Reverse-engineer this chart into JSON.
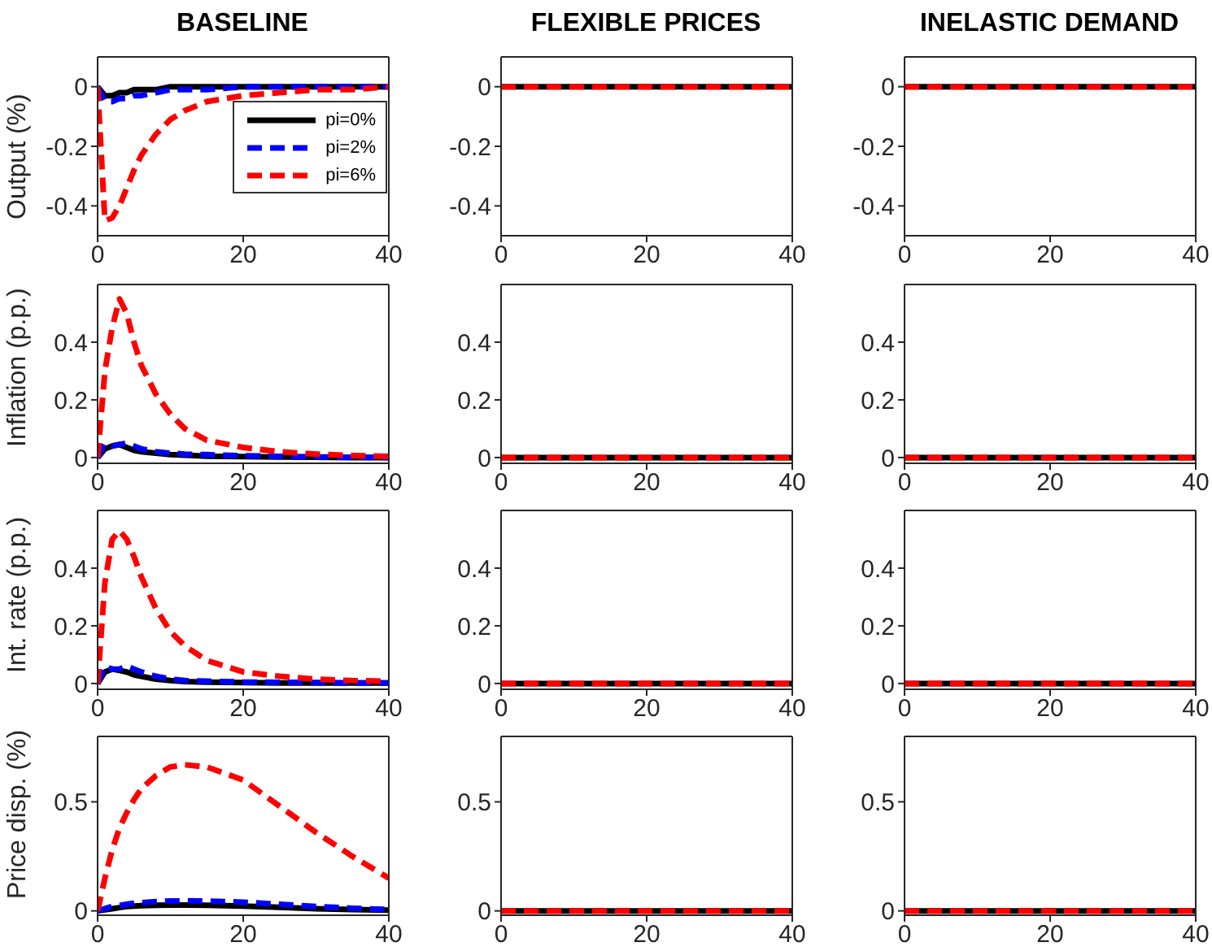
{
  "chart_data": [
    {
      "type": "line",
      "title": "BASELINE",
      "ylabel": "Output (%)",
      "legend": "right",
      "x": [
        0,
        1,
        2,
        3,
        4,
        5,
        6,
        8,
        10,
        12,
        15,
        20,
        25,
        30,
        35,
        40
      ],
      "xlim": [
        0,
        40
      ],
      "xticks": [
        0,
        20,
        40
      ],
      "ylim": [
        -0.5,
        0.1
      ],
      "yticks": [
        -0.4,
        -0.2,
        0
      ],
      "series": [
        {
          "name": "pi=0%",
          "color": "#000000",
          "line_style": "solid",
          "values": [
            0,
            -0.03,
            -0.03,
            -0.02,
            -0.02,
            -0.01,
            -0.01,
            -0.01,
            0,
            0,
            0,
            0,
            0,
            0,
            0,
            0
          ]
        },
        {
          "name": "pi=2%",
          "color": "#0000ff",
          "line_style": "dashed",
          "values": [
            0,
            -0.05,
            -0.05,
            -0.04,
            -0.04,
            -0.03,
            -0.03,
            -0.02,
            -0.01,
            -0.01,
            -0.01,
            0,
            0,
            0,
            0,
            0
          ]
        },
        {
          "name": "pi=6%",
          "color": "#ff0000",
          "line_style": "dashed",
          "values": [
            0,
            -0.45,
            -0.44,
            -0.4,
            -0.34,
            -0.28,
            -0.23,
            -0.16,
            -0.11,
            -0.08,
            -0.05,
            -0.03,
            -0.02,
            -0.01,
            -0.01,
            0
          ]
        }
      ]
    },
    {
      "type": "line",
      "title": "FLEXIBLE PRICES",
      "x": [
        0,
        10,
        20,
        30,
        40
      ],
      "xlim": [
        0,
        40
      ],
      "xticks": [
        0,
        20,
        40
      ],
      "ylim": [
        -0.5,
        0.1
      ],
      "yticks": [
        -0.4,
        -0.2,
        0
      ],
      "series": [
        {
          "color": "#000000",
          "line_style": "solid",
          "values": [
            0,
            0,
            0,
            0,
            0
          ]
        },
        {
          "color": "#0000ff",
          "line_style": "dashed",
          "values": [
            null,
            null,
            null,
            null,
            null
          ]
        },
        {
          "color": "#ff0000",
          "line_style": "dashed",
          "values": [
            0,
            0,
            0,
            0,
            0
          ]
        }
      ]
    },
    {
      "type": "line",
      "title": "INELASTIC DEMAND",
      "x": [
        0,
        10,
        20,
        30,
        40
      ],
      "xlim": [
        0,
        40
      ],
      "xticks": [
        0,
        20,
        40
      ],
      "ylim": [
        -0.5,
        0.1
      ],
      "yticks": [
        -0.4,
        -0.2,
        0
      ],
      "series": [
        {
          "color": "#000000",
          "line_style": "solid",
          "values": [
            0,
            0,
            0,
            0,
            0
          ]
        },
        {
          "color": "#0000ff",
          "line_style": "dashed",
          "values": [
            null,
            null,
            null,
            null,
            null
          ]
        },
        {
          "color": "#ff0000",
          "line_style": "dashed",
          "values": [
            0,
            0,
            0,
            0,
            0
          ]
        }
      ]
    },
    {
      "type": "line",
      "ylabel": "Inflation (p.p.)",
      "x": [
        0,
        1,
        2,
        3,
        4,
        5,
        6,
        8,
        10,
        12,
        15,
        20,
        25,
        30,
        35,
        40
      ],
      "xlim": [
        0,
        40
      ],
      "xticks": [
        0,
        20,
        40
      ],
      "ylim": [
        -0.02,
        0.6
      ],
      "yticks": [
        0,
        0.2,
        0.4
      ],
      "series": [
        {
          "color": "#000000",
          "line_style": "solid",
          "values": [
            0,
            0.03,
            0.04,
            0.045,
            0.035,
            0.025,
            0.02,
            0.015,
            0.01,
            0.008,
            0.005,
            0.003,
            0.002,
            0.001,
            0,
            0
          ]
        },
        {
          "color": "#0000ff",
          "line_style": "dashed",
          "values": [
            0,
            0.05,
            0.04,
            0.045,
            0.05,
            0.04,
            0.03,
            0.02,
            0.015,
            0.012,
            0.01,
            0.006,
            0.004,
            0.002,
            0.001,
            0
          ]
        },
        {
          "color": "#ff0000",
          "line_style": "dashed",
          "values": [
            0,
            0.3,
            0.45,
            0.55,
            0.5,
            0.4,
            0.32,
            0.22,
            0.15,
            0.1,
            0.06,
            0.035,
            0.02,
            0.012,
            0.007,
            0.004
          ]
        }
      ]
    },
    {
      "type": "line",
      "x": [
        0,
        10,
        20,
        30,
        40
      ],
      "xlim": [
        0,
        40
      ],
      "xticks": [
        0,
        20,
        40
      ],
      "ylim": [
        -0.02,
        0.6
      ],
      "yticks": [
        0,
        0.2,
        0.4
      ],
      "series": [
        {
          "color": "#000000",
          "line_style": "solid",
          "values": [
            0,
            0,
            0,
            0,
            0
          ]
        },
        {
          "color": "#0000ff",
          "line_style": "dashed",
          "values": [
            null,
            null,
            null,
            null,
            null
          ]
        },
        {
          "color": "#ff0000",
          "line_style": "dashed",
          "values": [
            0,
            0,
            0,
            0,
            0
          ]
        }
      ]
    },
    {
      "type": "line",
      "x": [
        0,
        10,
        20,
        30,
        40
      ],
      "xlim": [
        0,
        40
      ],
      "xticks": [
        0,
        20,
        40
      ],
      "ylim": [
        -0.02,
        0.6
      ],
      "yticks": [
        0,
        0.2,
        0.4
      ],
      "series": [
        {
          "color": "#000000",
          "line_style": "solid",
          "values": [
            0,
            0,
            0,
            0,
            0
          ]
        },
        {
          "color": "#0000ff",
          "line_style": "dashed",
          "values": [
            null,
            null,
            null,
            null,
            null
          ]
        },
        {
          "color": "#ff0000",
          "line_style": "dashed",
          "values": [
            0,
            0,
            0,
            0,
            0
          ]
        }
      ]
    },
    {
      "type": "line",
      "ylabel": "Int. rate (p.p.)",
      "x": [
        0,
        1,
        2,
        3,
        4,
        5,
        6,
        8,
        10,
        12,
        15,
        20,
        25,
        30,
        35,
        40
      ],
      "xlim": [
        0,
        40
      ],
      "xticks": [
        0,
        20,
        40
      ],
      "ylim": [
        -0.02,
        0.6
      ],
      "yticks": [
        0,
        0.2,
        0.4
      ],
      "series": [
        {
          "color": "#000000",
          "line_style": "solid",
          "values": [
            0,
            0.04,
            0.05,
            0.045,
            0.04,
            0.03,
            0.025,
            0.015,
            0.01,
            0.007,
            0.005,
            0.003,
            0.002,
            0.002,
            0.002,
            0.002
          ]
        },
        {
          "color": "#0000ff",
          "line_style": "dashed",
          "values": [
            0,
            0.06,
            0.05,
            0.05,
            0.06,
            0.05,
            0.04,
            0.025,
            0.015,
            0.01,
            0.008,
            0.005,
            0.004,
            0.003,
            0.002,
            0.002
          ]
        },
        {
          "color": "#ff0000",
          "line_style": "dashed",
          "values": [
            0,
            0.35,
            0.5,
            0.53,
            0.5,
            0.44,
            0.37,
            0.26,
            0.18,
            0.13,
            0.08,
            0.04,
            0.025,
            0.015,
            0.01,
            0.008
          ]
        }
      ]
    },
    {
      "type": "line",
      "x": [
        0,
        10,
        20,
        30,
        40
      ],
      "xlim": [
        0,
        40
      ],
      "xticks": [
        0,
        20,
        40
      ],
      "ylim": [
        -0.02,
        0.6
      ],
      "yticks": [
        0,
        0.2,
        0.4
      ],
      "series": [
        {
          "color": "#000000",
          "line_style": "solid",
          "values": [
            0,
            0,
            0,
            0,
            0
          ]
        },
        {
          "color": "#0000ff",
          "line_style": "dashed",
          "values": [
            null,
            null,
            null,
            null,
            null
          ]
        },
        {
          "color": "#ff0000",
          "line_style": "dashed",
          "values": [
            0,
            0,
            0,
            0,
            0
          ]
        }
      ]
    },
    {
      "type": "line",
      "x": [
        0,
        10,
        20,
        30,
        40
      ],
      "xlim": [
        0,
        40
      ],
      "xticks": [
        0,
        20,
        40
      ],
      "ylim": [
        -0.02,
        0.6
      ],
      "yticks": [
        0,
        0.2,
        0.4
      ],
      "series": [
        {
          "color": "#000000",
          "line_style": "solid",
          "values": [
            0,
            0,
            0,
            0,
            0
          ]
        },
        {
          "color": "#0000ff",
          "line_style": "dashed",
          "values": [
            null,
            null,
            null,
            null,
            null
          ]
        },
        {
          "color": "#ff0000",
          "line_style": "dashed",
          "values": [
            0,
            0,
            0,
            0,
            0
          ]
        }
      ]
    },
    {
      "type": "line",
      "ylabel": "Price disp. (%)",
      "x": [
        0,
        1,
        2,
        3,
        4,
        5,
        6,
        8,
        10,
        12,
        15,
        20,
        25,
        30,
        35,
        40
      ],
      "xlim": [
        0,
        40
      ],
      "xticks": [
        0,
        20,
        40
      ],
      "ylim": [
        -0.02,
        0.8
      ],
      "yticks": [
        0,
        0.5
      ],
      "series": [
        {
          "color": "#000000",
          "line_style": "solid",
          "values": [
            0,
            0.005,
            0.01,
            0.015,
            0.02,
            0.022,
            0.024,
            0.026,
            0.027,
            0.027,
            0.026,
            0.022,
            0.016,
            0.01,
            0.006,
            0.003
          ]
        },
        {
          "color": "#0000ff",
          "line_style": "dashed",
          "values": [
            0,
            0.01,
            0.02,
            0.025,
            0.03,
            0.035,
            0.038,
            0.042,
            0.045,
            0.046,
            0.045,
            0.04,
            0.03,
            0.02,
            0.012,
            0.006
          ]
        },
        {
          "color": "#ff0000",
          "line_style": "dashed",
          "values": [
            0,
            0.15,
            0.28,
            0.38,
            0.45,
            0.51,
            0.56,
            0.62,
            0.66,
            0.67,
            0.66,
            0.6,
            0.48,
            0.36,
            0.25,
            0.15
          ]
        }
      ]
    },
    {
      "type": "line",
      "x": [
        0,
        10,
        20,
        30,
        40
      ],
      "xlim": [
        0,
        40
      ],
      "xticks": [
        0,
        20,
        40
      ],
      "ylim": [
        -0.02,
        0.8
      ],
      "yticks": [
        0,
        0.5
      ],
      "series": [
        {
          "color": "#000000",
          "line_style": "solid",
          "values": [
            0,
            0,
            0,
            0,
            0
          ]
        },
        {
          "color": "#0000ff",
          "line_style": "dashed",
          "values": [
            null,
            null,
            null,
            null,
            null
          ]
        },
        {
          "color": "#ff0000",
          "line_style": "dashed",
          "values": [
            0,
            0,
            0,
            0,
            0
          ]
        }
      ]
    },
    {
      "type": "line",
      "x": [
        0,
        10,
        20,
        30,
        40
      ],
      "xlim": [
        0,
        40
      ],
      "xticks": [
        0,
        20,
        40
      ],
      "ylim": [
        -0.02,
        0.8
      ],
      "yticks": [
        0,
        0.5
      ],
      "series": [
        {
          "color": "#000000",
          "line_style": "solid",
          "values": [
            0,
            0,
            0,
            0,
            0
          ]
        },
        {
          "color": "#0000ff",
          "line_style": "dashed",
          "values": [
            null,
            null,
            null,
            null,
            null
          ]
        },
        {
          "color": "#ff0000",
          "line_style": "dashed",
          "values": [
            0,
            0,
            0,
            0,
            0
          ]
        }
      ]
    }
  ]
}
